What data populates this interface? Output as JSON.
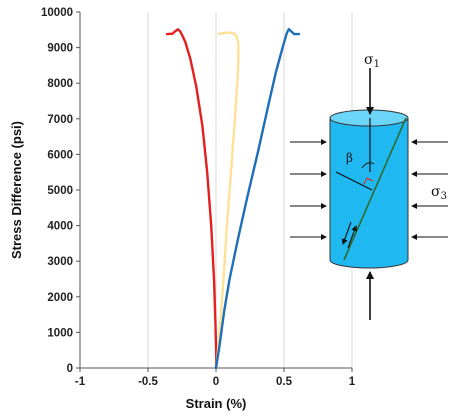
{
  "chart_data": {
    "type": "line",
    "xlabel": "Strain (%)",
    "ylabel": "Stress Difference (psi)",
    "xlim": [
      -1,
      1
    ],
    "ylim": [
      0,
      10000
    ],
    "xticks": [
      -1,
      -0.5,
      0,
      0.5,
      1
    ],
    "yticks": [
      0,
      1000,
      2000,
      3000,
      4000,
      5000,
      6000,
      7000,
      8000,
      9000,
      10000
    ],
    "grid": {
      "vertical": true,
      "horizontal": false
    },
    "series": [
      {
        "color": "#e41f1f",
        "points": [
          [
            0.0,
            0
          ],
          [
            0.002,
            300
          ],
          [
            -0.004,
            1200
          ],
          [
            -0.015,
            2500
          ],
          [
            -0.035,
            4000
          ],
          [
            -0.065,
            5500
          ],
          [
            -0.1,
            6800
          ],
          [
            -0.145,
            7900
          ],
          [
            -0.19,
            8700
          ],
          [
            -0.225,
            9150
          ],
          [
            -0.25,
            9360
          ],
          [
            -0.265,
            9460
          ],
          [
            -0.28,
            9510
          ],
          [
            -0.3,
            9460
          ],
          [
            -0.32,
            9390
          ],
          [
            -0.36,
            9380
          ]
        ]
      },
      {
        "color": "#ffe196",
        "points": [
          [
            0.0,
            0
          ],
          [
            0.01,
            300
          ],
          [
            0.03,
            1200
          ],
          [
            0.055,
            2500
          ],
          [
            0.08,
            4000
          ],
          [
            0.11,
            5500
          ],
          [
            0.135,
            6800
          ],
          [
            0.155,
            7900
          ],
          [
            0.165,
            8700
          ],
          [
            0.165,
            9100
          ],
          [
            0.15,
            9320
          ],
          [
            0.13,
            9400
          ],
          [
            0.1,
            9420
          ],
          [
            0.06,
            9410
          ],
          [
            0.02,
            9380
          ]
        ]
      },
      {
        "color": "#1f6fb8",
        "points": [
          [
            0.0,
            0
          ],
          [
            0.025,
            600
          ],
          [
            0.06,
            1600
          ],
          [
            0.1,
            2500
          ],
          [
            0.16,
            3600
          ],
          [
            0.23,
            4800
          ],
          [
            0.31,
            6100
          ],
          [
            0.38,
            7300
          ],
          [
            0.44,
            8300
          ],
          [
            0.49,
            9000
          ],
          [
            0.52,
            9400
          ],
          [
            0.535,
            9520
          ],
          [
            0.555,
            9450
          ],
          [
            0.575,
            9380
          ],
          [
            0.61,
            9380
          ]
        ]
      }
    ]
  },
  "diagram": {
    "sigma_top": {
      "symbol": "σ",
      "sub": "1"
    },
    "sigma_side": {
      "symbol": "σ",
      "sub": "3"
    },
    "angle_label": "β",
    "cylinder_fill": "#20b8f0",
    "cylinder_top_fill": "#6bd6f8",
    "fault_color": "#2e6b2e"
  }
}
